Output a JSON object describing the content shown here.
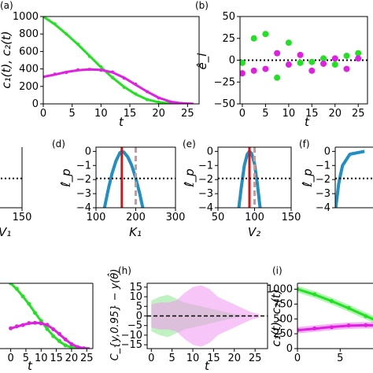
{
  "chart_data": [
    {
      "panel": "(a)",
      "type": "line",
      "xlabel": "t",
      "ylabel": "c₁(t), c₂(t)",
      "xlim": [
        0,
        27
      ],
      "ylim": [
        0,
        1000
      ],
      "xticks": [
        0,
        5,
        10,
        15,
        20,
        25
      ],
      "yticks": [
        0,
        200,
        400,
        600,
        800,
        1000
      ],
      "colors": {
        "green": "#22e022",
        "magenta": "#e020e0"
      },
      "series": [
        {
          "color": "#22e022",
          "x": [
            0,
            2,
            4,
            6,
            8,
            10,
            12,
            14,
            16,
            18,
            20,
            22,
            24,
            26
          ],
          "y": [
            1000,
            910,
            800,
            680,
            550,
            420,
            300,
            195,
            110,
            50,
            18,
            5,
            1,
            0
          ],
          "points_x": [
            0,
            2,
            4,
            6,
            8,
            10,
            12,
            14,
            16,
            18,
            20,
            22,
            24
          ],
          "points_y": [
            1000,
            915,
            800,
            685,
            545,
            425,
            300,
            190,
            115,
            48,
            20,
            4,
            2
          ]
        },
        {
          "color": "#e020e0",
          "x": [
            0,
            2,
            4,
            6,
            8,
            10,
            12,
            14,
            16,
            18,
            20,
            22,
            24,
            26
          ],
          "y": [
            310,
            335,
            365,
            385,
            395,
            390,
            360,
            300,
            220,
            140,
            70,
            25,
            6,
            1
          ],
          "points_x": [
            0,
            2,
            4,
            6,
            8,
            10,
            12,
            14,
            16,
            18,
            20,
            22,
            24
          ],
          "points_y": [
            310,
            340,
            360,
            390,
            395,
            385,
            365,
            295,
            225,
            140,
            68,
            22,
            5
          ]
        }
      ]
    },
    {
      "panel": "(b)",
      "type": "scatter",
      "xlabel": "t",
      "ylabel": "ê_i",
      "xlim": [
        -0.5,
        27
      ],
      "ylim": [
        -50,
        50
      ],
      "xticks": [
        0,
        5,
        10,
        15,
        20,
        25
      ],
      "yticks": [
        -50,
        -25,
        0,
        25,
        50
      ],
      "reference_line": 0,
      "series": [
        {
          "color": "#22e022",
          "x": [
            0,
            2.5,
            5,
            7.5,
            10,
            12.5,
            15,
            17.5,
            20,
            22.5,
            25
          ],
          "y": [
            -3,
            25,
            30,
            -20,
            20,
            -3,
            -2,
            2,
            -5,
            5,
            8
          ]
        },
        {
          "color": "#e020e0",
          "x": [
            0,
            2.5,
            5,
            7.5,
            10,
            12.5,
            15,
            17.5,
            20,
            22.5,
            25
          ],
          "y": [
            -15,
            -12,
            -10,
            8,
            -5,
            6,
            -12,
            -4,
            2,
            -10,
            2
          ]
        }
      ]
    },
    {
      "panel": "(c)",
      "type": "line",
      "partial": true,
      "xlabel": "V₁",
      "ylabel": "",
      "xlim": [
        0,
        150
      ],
      "ylim": [
        -4,
        0.3
      ],
      "xticks": [
        150
      ],
      "yticks": [],
      "threshold": -1.92,
      "mle": 90,
      "upper_bound": 100
    },
    {
      "panel": "(d)",
      "type": "line",
      "xlabel": "K₁",
      "ylabel": "ℓ̂_p",
      "xlim": [
        100,
        300
      ],
      "ylim": [
        -4,
        0.3
      ],
      "xticks": [
        100,
        200,
        300
      ],
      "yticks": [
        0,
        -1,
        -2,
        -3,
        -4
      ],
      "threshold": -1.92,
      "mle": 165,
      "upper_bound": 200,
      "profile": {
        "x": [
          120,
          130,
          140,
          150,
          160,
          165,
          170,
          180,
          190,
          200,
          210,
          220
        ],
        "y": [
          -4.2,
          -2.8,
          -1.6,
          -0.7,
          -0.1,
          0,
          -0.05,
          -0.4,
          -1.0,
          -1.9,
          -3.0,
          -4.3
        ]
      }
    },
    {
      "panel": "(e)",
      "type": "line",
      "xlabel": "V₂",
      "ylabel": "ℓ̂_p",
      "xlim": [
        50,
        150
      ],
      "ylim": [
        -4,
        0.3
      ],
      "xticks": [
        50,
        100,
        150
      ],
      "yticks": [
        0,
        -1,
        -2,
        -3,
        -4
      ],
      "threshold": -1.92,
      "mle": 93,
      "upper_bound": 100,
      "profile": {
        "x": [
          78,
          82,
          86,
          90,
          93,
          96,
          100,
          104,
          108
        ],
        "y": [
          -4.2,
          -2.5,
          -1.0,
          -0.2,
          0,
          -0.15,
          -0.9,
          -2.4,
          -4.2
        ]
      }
    },
    {
      "panel": "(f)",
      "type": "line",
      "partial": true,
      "xlabel": "",
      "ylabel": "ℓ̂_p",
      "xlim": [
        0,
        100
      ],
      "ylim": [
        -4,
        0.3
      ],
      "xticks": [],
      "yticks": [
        0,
        -1,
        -2,
        -3,
        -4
      ],
      "threshold": -1.92
    },
    {
      "panel": "(g)",
      "type": "line",
      "partial": true,
      "xlabel": "t",
      "ylabel": "",
      "xlim": [
        -3,
        27
      ],
      "ylim": [
        0,
        1000
      ],
      "xticks": [
        0,
        5,
        10,
        15,
        20,
        25
      ],
      "yticks": []
    },
    {
      "panel": "(h)",
      "type": "area",
      "xlabel": "t",
      "ylabel": "C_{y,0.95} − y(θ̂)",
      "xlim": [
        -1,
        28
      ],
      "ylim": [
        -17,
        17
      ],
      "xticks": [
        0,
        5,
        10,
        15,
        20,
        25
      ],
      "yticks": [
        -15,
        -10,
        -5,
        0,
        5,
        10,
        15
      ],
      "reference_line": 0,
      "bands": [
        {
          "color": "#22e022",
          "x": [
            0,
            2,
            4,
            6,
            8,
            10,
            12,
            14,
            16,
            18,
            20,
            22,
            24,
            26
          ],
          "upper": [
            8,
            10,
            11,
            9,
            7,
            6,
            5,
            4,
            3,
            2,
            1,
            0.5,
            0.2,
            0.1
          ]
        },
        {
          "color": "#e020e0",
          "x": [
            0,
            2,
            4,
            6,
            8,
            10,
            12,
            14,
            16,
            18,
            20,
            22,
            24,
            26
          ],
          "upper": [
            6,
            7,
            7,
            8,
            12,
            15,
            16,
            14,
            10,
            8,
            6,
            4,
            2,
            1
          ]
        }
      ]
    },
    {
      "panel": "(i)",
      "type": "line",
      "partial": true,
      "xlabel": "",
      "ylabel": "c₁(t), c₂(t)",
      "xlim": [
        0,
        14
      ],
      "ylim": [
        0,
        1100
      ],
      "xticks": [
        0,
        5
      ],
      "yticks": [
        0,
        250,
        500,
        750,
        1000
      ]
    }
  ]
}
